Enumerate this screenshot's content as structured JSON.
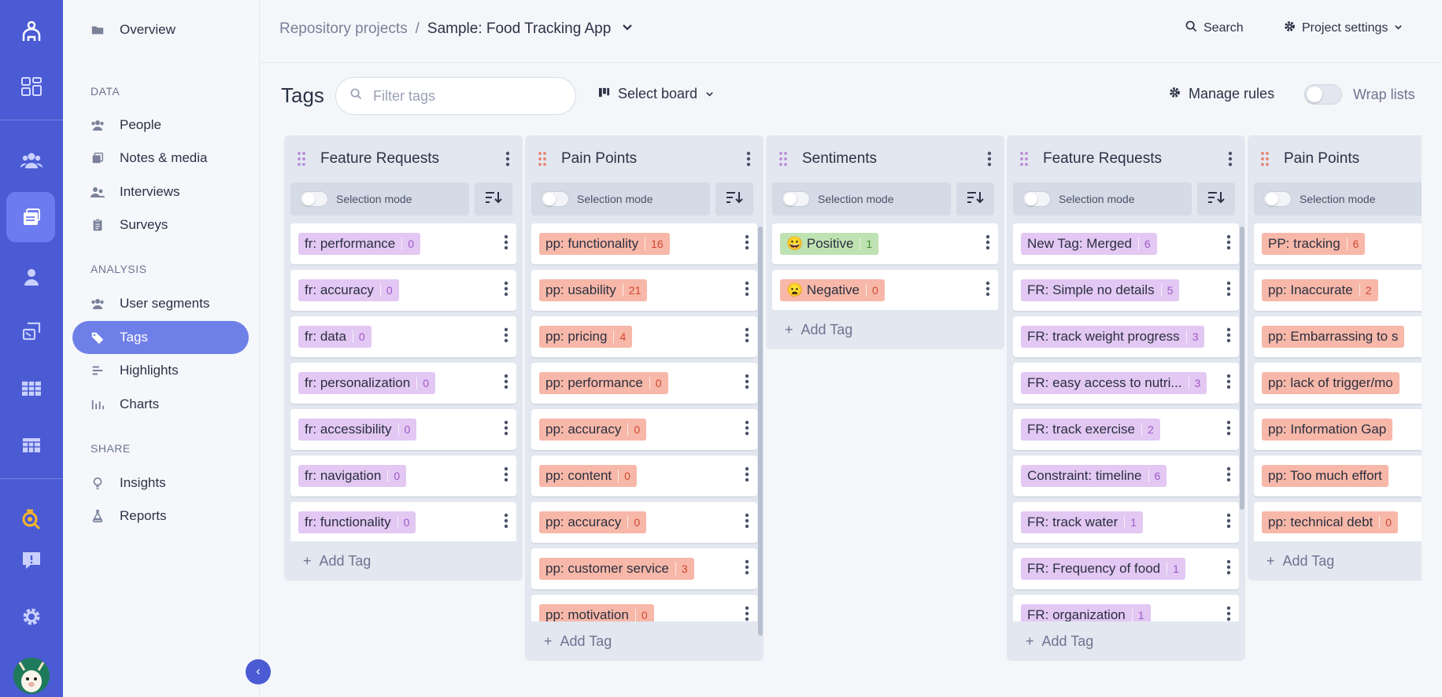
{
  "nav": {
    "overview": "Overview",
    "data_section": "DATA",
    "people": "People",
    "notes_media": "Notes & media",
    "interviews": "Interviews",
    "surveys": "Surveys",
    "analysis_section": "ANALYSIS",
    "user_segments": "User segments",
    "tags": "Tags",
    "highlights": "Highlights",
    "charts": "Charts",
    "share_section": "SHARE",
    "insights": "Insights",
    "reports": "Reports"
  },
  "topbar": {
    "breadcrumb_parent": "Repository projects",
    "breadcrumb_sep": "/",
    "project_name": "Sample: Food Tracking App",
    "search_label": "Search",
    "settings_label": "Project settings"
  },
  "toolbar": {
    "title": "Tags",
    "filter_placeholder": "Filter tags",
    "select_board": "Select board",
    "manage_rules": "Manage rules",
    "wrap_lists": "Wrap lists",
    "wrap_lists_on": false
  },
  "colors": {
    "rail": "#4a5bd4",
    "active_nav": "#6f7fe8",
    "fr_tag": "#e2c8f3",
    "pp_tag": "#f7b8a9",
    "sentiment_positive": "#bfe2b2"
  },
  "columns": [
    {
      "title": "Feature Requests",
      "grip_color": "#b98ad9",
      "selection_mode": "Selection mode",
      "add_tag": "Add Tag",
      "tags": [
        {
          "label": "fr: performance",
          "count": "0",
          "color": "purple"
        },
        {
          "label": "fr: accuracy",
          "count": "0",
          "color": "purple"
        },
        {
          "label": "fr: data",
          "count": "0",
          "color": "purple"
        },
        {
          "label": "fr: personalization",
          "count": "0",
          "color": "purple"
        },
        {
          "label": "fr: accessibility",
          "count": "0",
          "color": "purple"
        },
        {
          "label": "fr: navigation",
          "count": "0",
          "color": "purple"
        },
        {
          "label": "fr: functionality",
          "count": "0",
          "color": "purple"
        }
      ]
    },
    {
      "title": "Pain Points",
      "grip_color": "#e8816d",
      "selection_mode": "Selection mode",
      "add_tag": "Add Tag",
      "tags": [
        {
          "label": "pp: functionality",
          "count": "16",
          "color": "red"
        },
        {
          "label": "pp: usability",
          "count": "21",
          "color": "red"
        },
        {
          "label": "pp: pricing",
          "count": "4",
          "color": "red"
        },
        {
          "label": "pp: performance",
          "count": "0",
          "color": "red"
        },
        {
          "label": "pp: accuracy",
          "count": "0",
          "color": "red"
        },
        {
          "label": "pp: content",
          "count": "0",
          "color": "red"
        },
        {
          "label": "pp: accuracy",
          "count": "0",
          "color": "red"
        },
        {
          "label": "pp: customer service",
          "count": "3",
          "color": "red"
        },
        {
          "label": "pp: motivation",
          "count": "0",
          "color": "red"
        }
      ]
    },
    {
      "title": "Sentiments",
      "grip_color": "#b98ad9",
      "selection_mode": "Selection mode",
      "add_tag": "Add Tag",
      "tags": [
        {
          "label": "😀 Positive",
          "count": "1",
          "color": "green"
        },
        {
          "label": "😦 Negative",
          "count": "0",
          "color": "red"
        }
      ]
    },
    {
      "title": "Feature Requests",
      "grip_color": "#b98ad9",
      "selection_mode": "Selection mode",
      "add_tag": "Add Tag",
      "tags": [
        {
          "label": "New Tag: Merged",
          "count": "6",
          "color": "purple"
        },
        {
          "label": "FR: Simple no details",
          "count": "5",
          "color": "purple"
        },
        {
          "label": "FR: track weight progress",
          "count": "3",
          "color": "purple"
        },
        {
          "label": "FR: easy access to nutri...",
          "count": "3",
          "color": "purple"
        },
        {
          "label": "FR: track exercise",
          "count": "2",
          "color": "purple"
        },
        {
          "label": "Constraint: timeline",
          "count": "6",
          "color": "purple"
        },
        {
          "label": "FR: track water",
          "count": "1",
          "color": "purple"
        },
        {
          "label": "FR: Frequency of food",
          "count": "1",
          "color": "purple"
        },
        {
          "label": "FR: organization",
          "count": "1",
          "color": "purple"
        }
      ]
    },
    {
      "title": "Pain Points",
      "grip_color": "#e8816d",
      "selection_mode": "Selection mode",
      "add_tag": "Add Tag",
      "tags": [
        {
          "label": "PP: tracking",
          "count": "6",
          "color": "red"
        },
        {
          "label": "pp: Inaccurate",
          "count": "2",
          "color": "red"
        },
        {
          "label": "pp: Embarrassing to s",
          "count": "",
          "color": "red"
        },
        {
          "label": "pp: lack of trigger/mo",
          "count": "",
          "color": "red"
        },
        {
          "label": "pp: Information Gap",
          "count": "",
          "color": "red"
        },
        {
          "label": "pp: Too much effort",
          "count": "",
          "color": "red"
        },
        {
          "label": "pp: technical debt",
          "count": "0",
          "color": "red"
        }
      ]
    }
  ]
}
